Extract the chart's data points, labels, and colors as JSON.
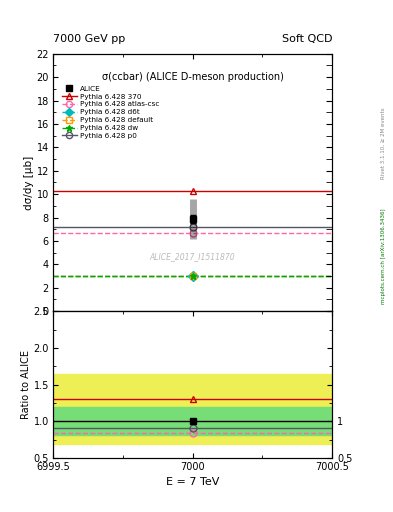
{
  "title_left": "7000 GeV pp",
  "title_right": "Soft QCD",
  "right_label_top": "Rivet 3.1.10, ≥ 2M events",
  "right_label_bottom": "mcplots.cern.ch [arXiv:1306.3436]",
  "plot_title": "σ(ccbar) (ALICE D-meson production)",
  "watermark": "ALICE_2017_I1511870",
  "ylabel_main": "dσ/dy [μb]",
  "ylabel_ratio": "Ratio to ALICE",
  "xlabel": "E = 7 TeV",
  "x_center": 7000,
  "xlim": [
    6999.5,
    7000.5
  ],
  "ylim_main": [
    0,
    22
  ],
  "ylim_ratio": [
    0.5,
    2.5
  ],
  "yticks_main": [
    0,
    2,
    4,
    6,
    8,
    10,
    12,
    14,
    16,
    18,
    20,
    22
  ],
  "yticks_ratio": [
    0.5,
    1.0,
    1.5,
    2.0,
    2.5
  ],
  "alice_value": 7.9,
  "alice_err_stat": 0.35,
  "alice_err_sys_lo": 1.7,
  "alice_err_sys_hi": 1.7,
  "series": [
    {
      "label": "Pythia 6.428 370",
      "type": "line",
      "color": "#cc0000",
      "linestyle": "-",
      "marker": "^",
      "markerfacecolor": "none",
      "value": 10.3,
      "ratio": 1.304
    },
    {
      "label": "Pythia 6.428 atlas-csc",
      "type": "line",
      "color": "#ff66aa",
      "linestyle": "--",
      "marker": "o",
      "markerfacecolor": "none",
      "value": 6.7,
      "ratio": 0.848
    },
    {
      "label": "Pythia 6.428 d6t",
      "type": "line",
      "color": "#00bbbb",
      "linestyle": "--",
      "marker": "D",
      "markerfacecolor": "#00bbbb",
      "value": 3.0,
      "ratio": null
    },
    {
      "label": "Pythia 6.428 default",
      "type": "line",
      "color": "#ff9900",
      "linestyle": "--",
      "marker": "s",
      "markerfacecolor": "none",
      "value": 3.0,
      "ratio": null
    },
    {
      "label": "Pythia 6.428 dw",
      "type": "line",
      "color": "#00aa00",
      "linestyle": "--",
      "marker": "*",
      "markerfacecolor": "#00aa00",
      "value": 3.0,
      "ratio": null
    },
    {
      "label": "Pythia 6.428 p0",
      "type": "line",
      "color": "#555566",
      "linestyle": "-",
      "marker": "o",
      "markerfacecolor": "none",
      "value": 7.2,
      "ratio": 0.911
    }
  ],
  "green_band_color": "#77dd77",
  "yellow_band_color": "#eeee55",
  "alice_ratio_band_green_lo": 0.82,
  "alice_ratio_band_green_hi": 1.19,
  "alice_ratio_band_yellow_lo": 0.7,
  "alice_ratio_band_yellow_hi": 1.65
}
